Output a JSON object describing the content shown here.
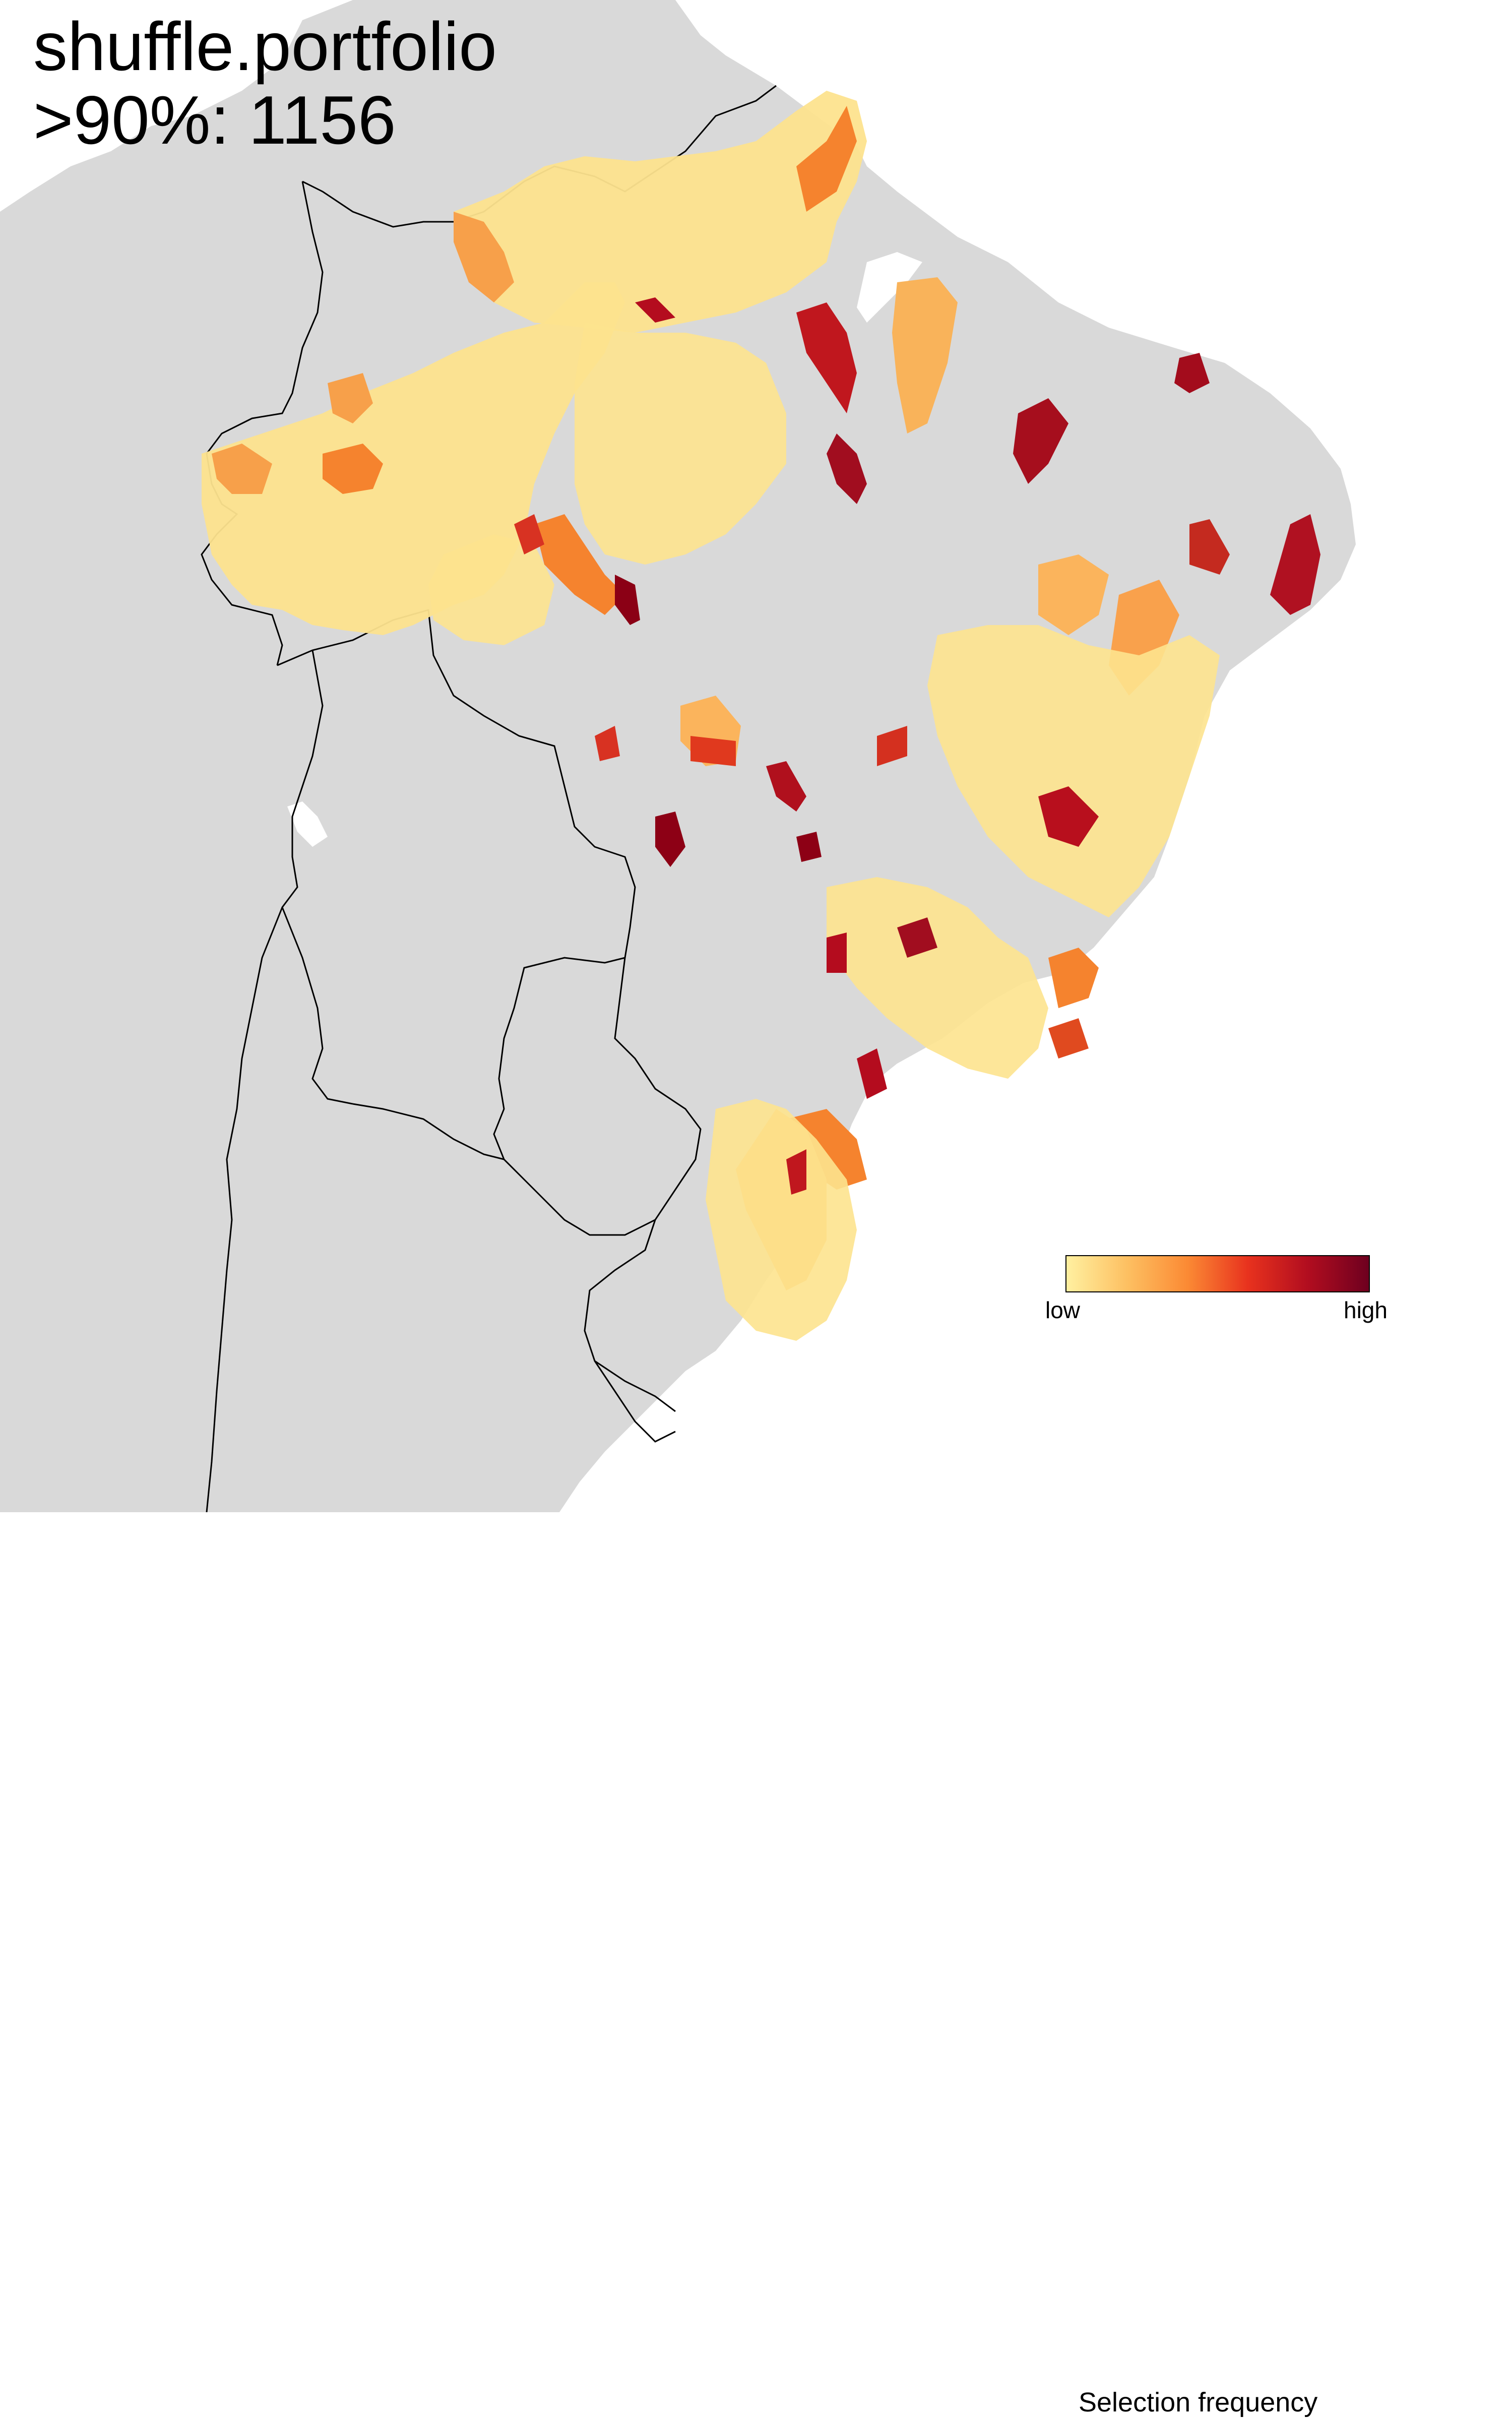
{
  "title": {
    "line1": "shuffle.portfolio",
    "line2": ">90%: 1156"
  },
  "legend": {
    "title": "Selection frequency",
    "low_label": "low",
    "high_label": "high",
    "gradient_colors": [
      "#fff0a0",
      "#fdc062",
      "#fb8a34",
      "#e8321e",
      "#b10d1f",
      "#6e001f"
    ]
  },
  "map": {
    "region": "South America (Brazil)",
    "land_color": "#d9d9d9",
    "sea_color": "#ffffff",
    "border_color": "#000000",
    "palette": {
      "low": "#fde38e",
      "mid_low": "#fbb45c",
      "mid": "#f5832e",
      "mid_high": "#e03a1f",
      "high": "#b40c1e",
      "very_high": "#7a0012"
    }
  }
}
